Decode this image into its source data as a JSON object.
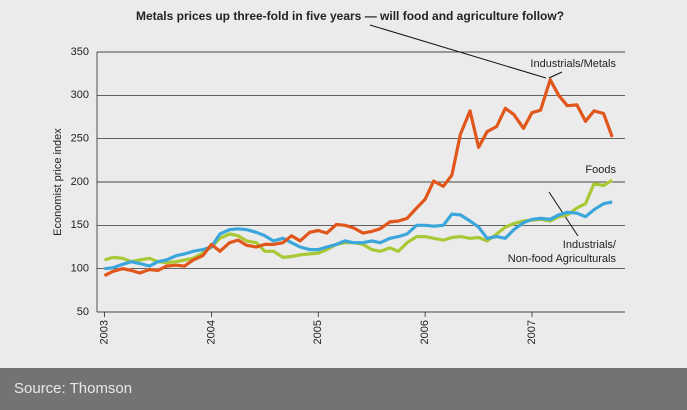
{
  "chart_data": {
    "type": "line",
    "title": "Metals prices up three-fold in five years — will food and agriculture follow?",
    "ylabel": "Economist price index",
    "annotations": [
      "Industrials/Metals",
      "Foods",
      "Industrials/",
      "Non-food Agriculturals"
    ],
    "x": [
      2003,
      2003.08,
      2003.17,
      2003.25,
      2003.33,
      2003.42,
      2003.5,
      2003.58,
      2003.67,
      2003.75,
      2003.83,
      2003.92,
      2004,
      2004.08,
      2004.17,
      2004.25,
      2004.33,
      2004.42,
      2004.5,
      2004.58,
      2004.67,
      2004.75,
      2004.83,
      2004.92,
      2005,
      2005.08,
      2005.17,
      2005.25,
      2005.33,
      2005.42,
      2005.5,
      2005.58,
      2005.67,
      2005.75,
      2005.83,
      2005.92,
      2006,
      2006.08,
      2006.17,
      2006.25,
      2006.33,
      2006.42,
      2006.5,
      2006.58,
      2006.67,
      2006.75,
      2006.83,
      2006.92,
      2007,
      2007.08,
      2007.17,
      2007.25,
      2007.33,
      2007.42,
      2007.5,
      2007.58,
      2007.67,
      2007.75
    ],
    "series": [
      {
        "name": "Industrials/Metals",
        "color": "#e0561b",
        "values": [
          92,
          97,
          100,
          98,
          95,
          99,
          98,
          103,
          104,
          103,
          110,
          115,
          128,
          120,
          130,
          133,
          127,
          125,
          128,
          128,
          130,
          138,
          132,
          142,
          144,
          141,
          151,
          150,
          147,
          141,
          143,
          146,
          154,
          155,
          158,
          170,
          180,
          201,
          195,
          208,
          255,
          282,
          240,
          258,
          264,
          285,
          278,
          262,
          280,
          283,
          318,
          300,
          288,
          289,
          270,
          282,
          279,
          252
        ]
      },
      {
        "name": "Foods",
        "color": "#a8c836",
        "values": [
          110,
          113,
          112,
          108,
          110,
          112,
          108,
          107,
          108,
          110,
          112,
          118,
          125,
          135,
          140,
          138,
          132,
          130,
          120,
          120,
          113,
          114,
          116,
          117,
          118,
          122,
          128,
          130,
          130,
          128,
          122,
          120,
          124,
          120,
          130,
          137,
          137,
          135,
          133,
          136,
          137,
          135,
          136,
          132,
          140,
          148,
          152,
          155,
          156,
          157,
          155,
          160,
          162,
          170,
          175,
          198,
          196,
          202
        ]
      },
      {
        "name": "Industrials/Non-food Agriculturals",
        "color": "#3aa6db",
        "values": [
          100,
          101,
          105,
          108,
          106,
          103,
          108,
          110,
          115,
          117,
          120,
          122,
          125,
          140,
          145,
          146,
          145,
          142,
          138,
          132,
          135,
          130,
          125,
          122,
          122,
          125,
          128,
          132,
          130,
          130,
          132,
          130,
          135,
          137,
          140,
          150,
          150,
          149,
          150,
          163,
          162,
          155,
          148,
          135,
          137,
          135,
          145,
          153,
          157,
          158,
          157,
          162,
          165,
          164,
          160,
          168,
          175,
          177
        ]
      }
    ],
    "xlim": [
      2002.93,
      2007.87
    ],
    "xticks": [
      2003,
      2004,
      2005,
      2006,
      2007
    ],
    "ylim": [
      50,
      350
    ],
    "yticks": [
      50,
      100,
      150,
      200,
      250,
      300,
      350
    ],
    "grid": true
  },
  "footer": {
    "source": "Source: Thomson"
  }
}
